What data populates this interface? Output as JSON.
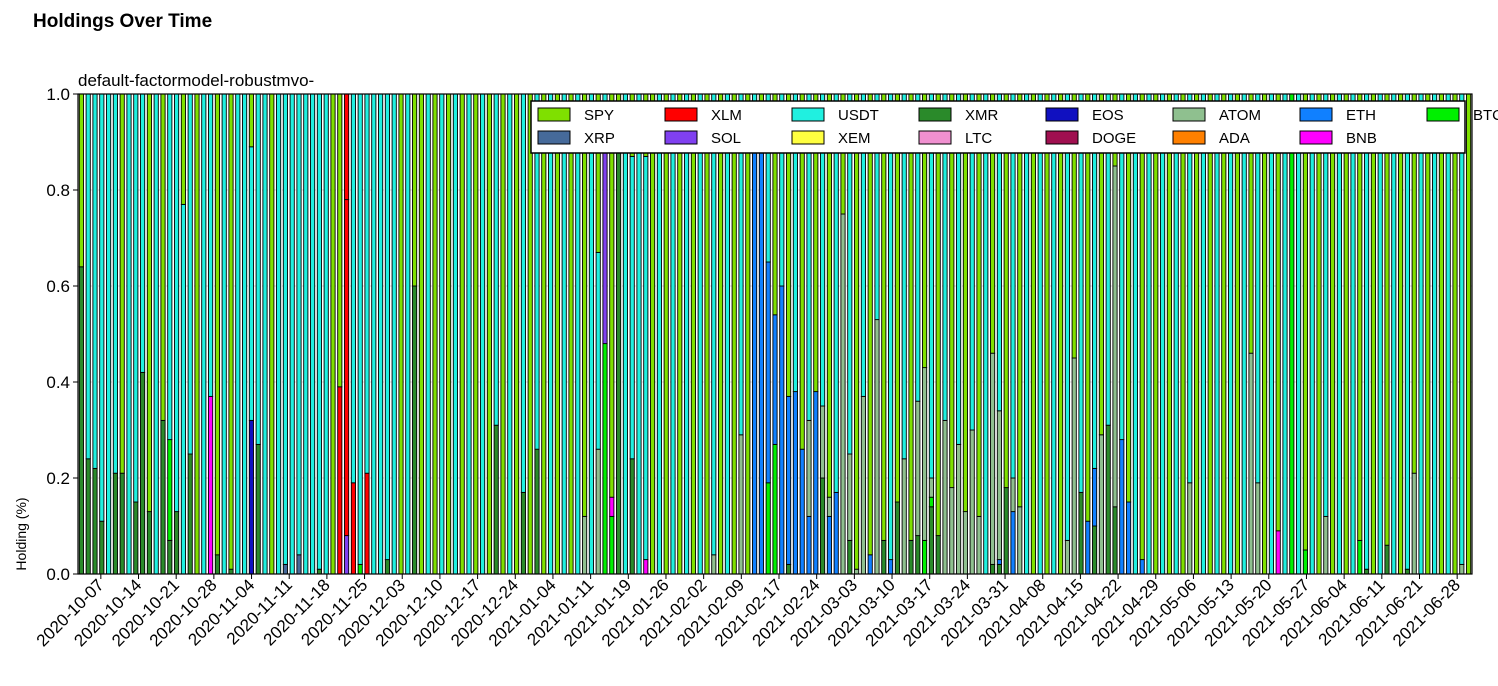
{
  "figure": {
    "title": "Holdings Over Time"
  },
  "chart_data": {
    "type": "bar",
    "stacked": true,
    "title": "default-factormodel-robustmvo-",
    "xlabel": "",
    "ylabel": "Holding (%)",
    "ylim": [
      0,
      1
    ],
    "yticks": [
      "0.0",
      "0.2",
      "0.4",
      "0.6",
      "0.8",
      "1.0"
    ],
    "grid": true,
    "legend_position": "top-right",
    "x_tick_labels": [
      "2020-10-07",
      "2020-10-14",
      "2020-10-21",
      "2020-10-28",
      "2020-11-04",
      "2020-11-11",
      "2020-11-18",
      "2020-11-25",
      "2020-12-03",
      "2020-12-10",
      "2020-12-17",
      "2020-12-24",
      "2021-01-04",
      "2021-01-11",
      "2021-01-19",
      "2021-01-26",
      "2021-02-02",
      "2021-02-09",
      "2021-02-17",
      "2021-02-24",
      "2021-03-03",
      "2021-03-10",
      "2021-03-17",
      "2021-03-24",
      "2021-03-31",
      "2021-04-08",
      "2021-04-15",
      "2021-04-22",
      "2021-04-29",
      "2021-05-06",
      "2021-05-13",
      "2021-05-20",
      "2021-05-27",
      "2021-06-04",
      "2021-06-11",
      "2021-06-21",
      "2021-06-28"
    ],
    "legend": [
      {
        "name": "SPY",
        "color": "#7fe000"
      },
      {
        "name": "XLM",
        "color": "#ff0000"
      },
      {
        "name": "USDT",
        "color": "#20f0e0"
      },
      {
        "name": "XMR",
        "color": "#2a8a2a"
      },
      {
        "name": "EOS",
        "color": "#1010c0"
      },
      {
        "name": "ATOM",
        "color": "#8fc08f"
      },
      {
        "name": "ETH",
        "color": "#1080ff"
      },
      {
        "name": "BTC",
        "color": "#00f000"
      },
      {
        "name": "XRP",
        "color": "#466a9a"
      },
      {
        "name": "SOL",
        "color": "#8040f0"
      },
      {
        "name": "XEM",
        "color": "#ffff40"
      },
      {
        "name": "LTC",
        "color": "#f090d0"
      },
      {
        "name": "DOGE",
        "color": "#a01050"
      },
      {
        "name": "ADA",
        "color": "#ff8000"
      },
      {
        "name": "BNB",
        "color": "#ff00ff"
      }
    ],
    "bars": [
      {
        "XMR": 0.64,
        "SPY": 0.36
      },
      {
        "XMR": 0.24,
        "USDT": 0.76
      },
      {
        "XMR": 0.22,
        "USDT": 0.78
      },
      {
        "XMR": 0.11,
        "USDT": 0.89
      },
      {
        "USDT": 1.0
      },
      {
        "XMR": 0.21,
        "USDT": 0.79
      },
      {
        "XMR": 0.21,
        "SPY": 0.79
      },
      {
        "USDT": 1.0
      },
      {
        "XMR": 0.15,
        "USDT": 0.85
      },
      {
        "XMR": 0.42,
        "USDT": 0.58
      },
      {
        "XMR": 0.13,
        "SPY": 0.87
      },
      {
        "USDT": 1.0
      },
      {
        "XMR": 0.32,
        "SPY": 0.68
      },
      {
        "BTC": 0.21,
        "XMR": 0.07,
        "USDT": 0.72
      },
      {
        "XMR": 0.13,
        "USDT": 0.87
      },
      {
        "USDT": 0.77,
        "SPY": 0.23
      },
      {
        "XMR": 0.25,
        "USDT": 0.75
      },
      {
        "SPY": 1.0
      },
      {
        "USDT": 1.0
      },
      {
        "BNB": 0.37,
        "USDT": 0.63
      },
      {
        "XMR": 0.04,
        "SPY": 0.96
      },
      {
        "USDT": 1.0
      },
      {
        "XMR": 0.01,
        "SPY": 0.99
      },
      {
        "USDT": 1.0
      },
      {
        "USDT": 1.0
      },
      {
        "USDT": 0.57,
        "EOS": 0.32,
        "SPY": 0.11
      },
      {
        "XMR": 0.27,
        "USDT": 0.73
      },
      {
        "USDT": 1.0
      },
      {
        "SPY": 1.0
      },
      {
        "USDT": 1.0
      },
      {
        "USDT": 0.98,
        "XRP": 0.02
      },
      {
        "USDT": 1.0
      },
      {
        "USDT": 0.96,
        "XRP": 0.04
      },
      {
        "USDT": 1.0
      },
      {
        "USDT": 1.0
      },
      {
        "XMR": 0.01,
        "USDT": 0.99
      },
      {
        "USDT": 1.0
      },
      {
        "SPY": 1.0
      },
      {
        "XLM": 0.39,
        "SPY": 0.61
      },
      {
        "XLM": 0.7,
        "SOL": 0.08,
        "XLM_top": 0.22
      },
      {
        "XLM": 0.19,
        "USDT": 0.81
      },
      {
        "BTC": 0.02,
        "USDT": 0.98
      },
      {
        "XLM": 0.21,
        "USDT": 0.79
      },
      {
        "USDT": 1.0
      },
      {
        "USDT": 1.0
      },
      {
        "XMR": 0.03,
        "USDT": 0.97
      },
      {
        "USDT": 1.0
      },
      {
        "SPY": 1.0
      },
      {
        "USDT": 1.0
      },
      {
        "XMR": 0.6,
        "SPY": 0.4
      },
      {
        "SPY": 1.0
      },
      {
        "USDT": 1.0
      },
      {
        "SPY": 1.0
      },
      {
        "USDT": 1.0
      },
      {
        "SPY": 1.0
      },
      {
        "USDT": 1.0
      },
      {
        "SPY": 1.0
      },
      {
        "USDT": 1.0
      },
      {
        "SPY": 1.0
      },
      {
        "USDT": 1.0
      },
      {
        "SPY": 1.0
      },
      {
        "XMR": 0.31,
        "USDT": 0.69
      },
      {
        "SPY": 1.0
      },
      {
        "USDT": 1.0
      },
      {
        "SPY": 1.0
      },
      {
        "XMR": 0.17,
        "USDT": 0.83
      },
      {
        "SPY": 1.0
      },
      {
        "XMR": 0.26,
        "USDT": 0.74
      },
      {
        "SPY": 1.0
      },
      {
        "USDT": 1.0
      },
      {
        "SPY": 1.0
      },
      {
        "USDT": 1.0
      },
      {
        "SPY": 1.0
      },
      {
        "USDT": 1.0
      },
      {
        "ATOM": 0.12,
        "SPY": 0.88
      },
      {
        "USDT": 1.0
      },
      {
        "ATOM": 0.26,
        "USDT": 0.41,
        "SPY": 0.33
      },
      {
        "BTC": 0.48,
        "USDT": 0.11,
        "SOL": 0.41
      },
      {
        "BTC": 0.12,
        "BNB": 0.04,
        "SPY": 0.84
      },
      {
        "XMR": 0.88,
        "SPY": 0.12
      },
      {
        "USDT": 1.0
      },
      {
        "XMR": 0.24,
        "USDT": 0.63,
        "SPY": 0.13
      },
      {
        "USDT": 1.0
      },
      {
        "BNB": 0.03,
        "USDT": 0.84,
        "SPY": 0.13
      },
      {
        "SPY": 1.0
      },
      {
        "USDT": 1.0
      },
      {
        "SPY": 1.0
      },
      {
        "USDT": 1.0
      },
      {
        "SPY": 1.0
      },
      {
        "USDT": 1.0
      },
      {
        "SPY": 1.0
      },
      {
        "USDT": 1.0
      },
      {
        "SPY": 1.0
      },
      {
        "ATOM": 0.04,
        "USDT": 0.96
      },
      {
        "SPY": 1.0
      },
      {
        "USDT": 1.0
      },
      {
        "SPY": 1.0
      },
      {
        "ATOM": 0.29,
        "USDT": 0.71
      },
      {
        "SPY": 1.0
      },
      {
        "ETH": 0.91,
        "USDT": 0.09
      },
      {
        "ETH": 0.9,
        "SPY": 0.1
      },
      {
        "BTC": 0.19,
        "ETH": 0.46,
        "USDT": 0.35
      },
      {
        "BTC": 0.27,
        "ETH": 0.27,
        "SPY": 0.46
      },
      {
        "ETH": 0.6,
        "USDT": 0.4
      },
      {
        "XMR": 0.02,
        "ETH": 0.35,
        "SPY": 0.63
      },
      {
        "ETH": 0.38,
        "USDT": 0.62
      },
      {
        "ETH": 0.26,
        "SPY": 0.74
      },
      {
        "ETH": 0.12,
        "ATOM": 0.2,
        "USDT": 0.68
      },
      {
        "ETH": 0.38,
        "SPY": 0.62
      },
      {
        "ATOM": 0.15,
        "XMR": 0.2,
        "USDT": 0.65
      },
      {
        "ETH": 0.12,
        "ATOM": 0.04,
        "SPY": 0.84
      },
      {
        "ETH": 0.17,
        "USDT": 0.83
      },
      {
        "ATOM": 0.75,
        "SPY": 0.25
      },
      {
        "XMR": 0.07,
        "ATOM": 0.18,
        "USDT": 0.75
      },
      {
        "ATOM": 0.01,
        "SPY": 0.99
      },
      {
        "ATOM": 0.37,
        "USDT": 0.63
      },
      {
        "ETH": 0.04,
        "SPY": 0.96
      },
      {
        "ATOM": 0.53,
        "USDT": 0.47
      },
      {
        "XMR": 0.07,
        "SPY": 0.93
      },
      {
        "ETH": 0.03,
        "USDT": 0.97
      },
      {
        "XMR": 0.15,
        "SPY": 0.85
      },
      {
        "ATOM": 0.24,
        "USDT": 0.76
      },
      {
        "XMR": 0.07,
        "SPY": 0.93
      },
      {
        "XMR": 0.08,
        "ATOM": 0.28,
        "USDT": 0.64
      },
      {
        "BTC": 0.07,
        "ATOM": 0.36,
        "SPY": 0.57
      },
      {
        "BTC": 0.02,
        "XMR": 0.14,
        "ATOM": 0.04,
        "USDT": 0.8
      },
      {
        "XMR": 0.08,
        "SPY": 0.92
      },
      {
        "ATOM": 0.32,
        "USDT": 0.68
      },
      {
        "ATOM": 0.18,
        "SPY": 0.82
      },
      {
        "ATOM": 0.27,
        "USDT": 0.73
      },
      {
        "ATOM": 0.13,
        "SPY": 0.87
      },
      {
        "ATOM": 0.3,
        "USDT": 0.7
      },
      {
        "ATOM": 0.12,
        "SPY": 0.88
      },
      {
        "USDT": 1.0
      },
      {
        "XMR": 0.02,
        "ATOM": 0.44,
        "SPY": 0.54
      },
      {
        "XMR": 0.02,
        "ETH": 0.01,
        "ATOM": 0.31,
        "USDT": 0.66
      },
      {
        "XMR": 0.18,
        "SPY": 0.82
      },
      {
        "ETH": 0.13,
        "ATOM": 0.07,
        "USDT": 0.8
      },
      {
        "ATOM": 0.14,
        "SPY": 0.86
      },
      {
        "USDT": 1.0
      },
      {
        "SPY": 1.0
      },
      {
        "USDT": 1.0
      },
      {
        "SPY": 1.0
      },
      {
        "USDT": 1.0
      },
      {
        "SPY": 1.0
      },
      {
        "ATOM": 0.07,
        "USDT": 0.93
      },
      {
        "ATOM": 0.45,
        "SPY": 0.55
      },
      {
        "XMR": 0.17,
        "USDT": 0.83
      },
      {
        "ETH": 0.11,
        "SPY": 0.89
      },
      {
        "ETH": 0.12,
        "XMR": 0.1,
        "USDT": 0.78
      },
      {
        "ATOM": 0.29,
        "SPY": 0.71
      },
      {
        "XMR": 0.31,
        "USDT": 0.69
      },
      {
        "XMR": 0.14,
        "ATOM": 0.71,
        "SPY": 0.15
      },
      {
        "ETH": 0.28,
        "USDT": 0.72
      },
      {
        "ETH": 0.15,
        "SPY": 0.85
      },
      {
        "USDT": 1.0
      },
      {
        "ETH": 0.03,
        "SPY": 0.97
      },
      {
        "USDT": 1.0
      },
      {
        "SPY": 1.0
      },
      {
        "USDT": 1.0
      },
      {
        "SPY": 1.0
      },
      {
        "USDT": 1.0
      },
      {
        "SPY": 1.0
      },
      {
        "ATOM": 0.19,
        "USDT": 0.81
      },
      {
        "SPY": 1.0
      },
      {
        "USDT": 1.0
      },
      {
        "SPY": 1.0
      },
      {
        "USDT": 1.0
      },
      {
        "SPY": 1.0
      },
      {
        "USDT": 1.0
      },
      {
        "SPY": 1.0
      },
      {
        "USDT": 1.0
      },
      {
        "ATOM": 0.46,
        "SPY": 0.54
      },
      {
        "ATOM": 0.19,
        "USDT": 0.81
      },
      {
        "SPY": 1.0
      },
      {
        "USDT": 1.0
      },
      {
        "BNB": 0.09,
        "SPY": 0.91
      },
      {
        "USDT": 1.0
      },
      {
        "BTC": 1.0
      },
      {
        "USDT": 1.0
      },
      {
        "BTC": 0.05,
        "SPY": 0.95
      },
      {
        "USDT": 1.0
      },
      {
        "SPY": 1.0
      },
      {
        "ATOM": 0.12,
        "USDT": 0.88
      },
      {
        "SPY": 1.0
      },
      {
        "USDT": 1.0
      },
      {
        "SPY": 1.0
      },
      {
        "USDT": 1.0
      },
      {
        "BTC": 0.07,
        "SPY": 0.93
      },
      {
        "XMR": 0.01,
        "USDT": 0.99
      },
      {
        "SPY": 1.0
      },
      {
        "USDT": 1.0
      },
      {
        "XMR": 0.06,
        "SPY": 0.94
      },
      {
        "USDT": 1.0
      },
      {
        "SPY": 1.0
      },
      {
        "XMR": 0.01,
        "USDT": 0.99
      },
      {
        "ATOM": 0.21,
        "SPY": 0.79
      },
      {
        "USDT": 1.0
      },
      {
        "SPY": 1.0
      },
      {
        "USDT": 1.0
      },
      {
        "SPY": 1.0
      },
      {
        "USDT": 1.0
      },
      {
        "SPY": 1.0
      },
      {
        "ATOM": 0.02,
        "USDT": 0.98
      },
      {
        "SPY": 1.0
      }
    ]
  }
}
